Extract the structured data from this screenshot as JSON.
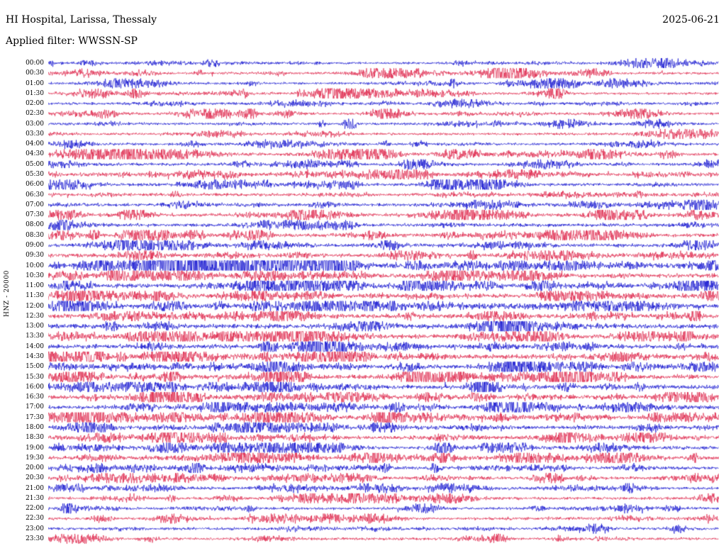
{
  "header": {
    "title": "HI Hospital, Larissa, Thessaly",
    "date": "2025-06-21",
    "filter_line": "Applied filter: WWSSN-SP"
  },
  "chart_data": {
    "type": "seismogram-helicorder",
    "station": "HI Hospital, Larissa, Thessaly",
    "channel_scale_label": "HNZ - 20000",
    "date": "2025-06-21",
    "filter": "WWSSN-SP",
    "minutes_per_row": 30,
    "trace_colors": {
      "even": "#0000cc",
      "odd": "#dc143c"
    },
    "rows": [
      "00:00",
      "00:30",
      "01:00",
      "01:30",
      "02:00",
      "02:30",
      "03:00",
      "03:30",
      "04:00",
      "04:30",
      "05:00",
      "05:30",
      "06:00",
      "06:30",
      "07:00",
      "07:30",
      "08:00",
      "08:30",
      "09:00",
      "09:30",
      "10:00",
      "10:30",
      "11:00",
      "11:30",
      "12:00",
      "12:30",
      "13:00",
      "13:30",
      "14:00",
      "14:30",
      "15:00",
      "15:30",
      "16:00",
      "16:30",
      "17:00",
      "17:30",
      "18:00",
      "18:30",
      "19:00",
      "19:30",
      "20:00",
      "20:30",
      "21:00",
      "21:30",
      "22:00",
      "22:30",
      "23:00",
      "23:30"
    ],
    "notable_events": [
      {
        "time": "01:30",
        "center": 0.42,
        "width": 0.015,
        "gain": 5
      },
      {
        "time": "02:30",
        "center": 0.3,
        "width": 0.01,
        "gain": 4
      },
      {
        "time": "03:00",
        "center": 0.45,
        "width": 0.008,
        "gain": 6
      },
      {
        "time": "04:30",
        "center": 0.13,
        "width": 0.09,
        "gain": 5
      },
      {
        "time": "05:00",
        "center": 0.55,
        "width": 0.02,
        "gain": 4
      },
      {
        "time": "06:00",
        "center": 0.6,
        "width": 0.03,
        "gain": 5
      },
      {
        "time": "10:00",
        "center": 0.27,
        "width": 0.12,
        "gain": 9
      },
      {
        "time": "10:00",
        "center": 0.42,
        "width": 0.03,
        "gain": 6
      },
      {
        "time": "12:00",
        "center": 0.03,
        "width": 0.02,
        "gain": 6
      },
      {
        "time": "14:00",
        "center": 0.33,
        "width": 0.01,
        "gain": 5
      },
      {
        "time": "16:00",
        "center": 0.65,
        "width": 0.02,
        "gain": 5
      },
      {
        "time": "17:30",
        "center": 0.5,
        "width": 0.012,
        "gain": 6
      },
      {
        "time": "19:00",
        "center": 0.59,
        "width": 0.012,
        "gain": 5
      },
      {
        "time": "21:30",
        "center": 0.455,
        "width": 0.008,
        "gain": 6
      },
      {
        "time": "22:00",
        "center": 0.03,
        "width": 0.008,
        "gain": 6
      }
    ]
  }
}
